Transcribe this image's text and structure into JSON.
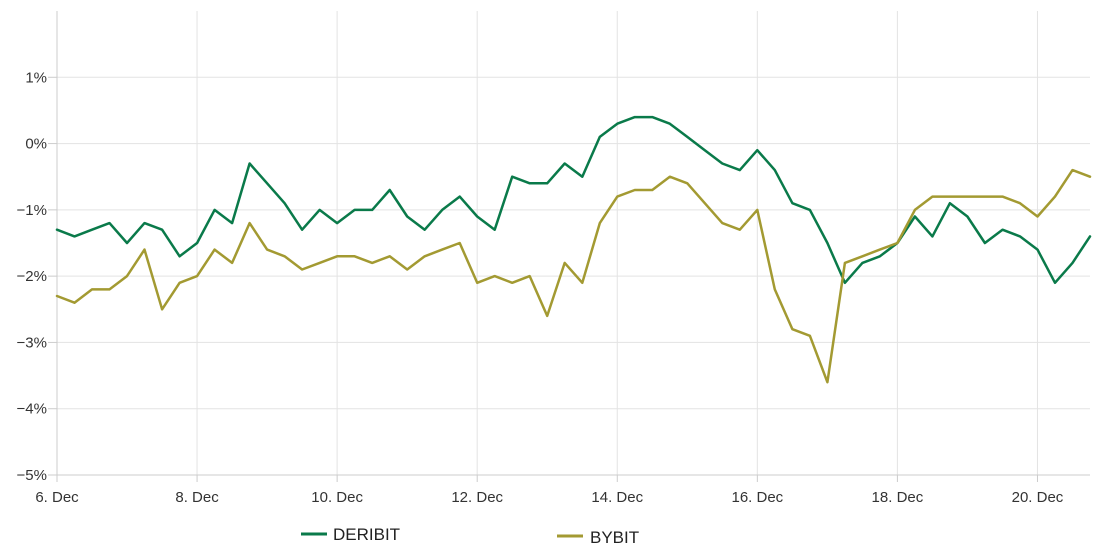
{
  "chart_data": {
    "type": "line",
    "title": "",
    "xlabel": "",
    "ylabel": "",
    "grid": true,
    "legend_position": "bottom",
    "x_ticks": [
      "6. Dec",
      "8. Dec",
      "10. Dec",
      "12. Dec",
      "14. Dec",
      "16. Dec",
      "18. Dec",
      "20. Dec"
    ],
    "y_ticks": [
      "1%",
      "0%",
      "−1%",
      "−2%",
      "−3%",
      "−4%",
      "−5%"
    ],
    "x_range_days": [
      6,
      20.75
    ],
    "ylim": [
      -5,
      2
    ],
    "x_day": [
      6.0,
      6.25,
      6.5,
      6.75,
      7.0,
      7.25,
      7.5,
      7.75,
      8.0,
      8.25,
      8.5,
      8.75,
      9.0,
      9.25,
      9.5,
      9.75,
      10.0,
      10.25,
      10.5,
      10.75,
      11.0,
      11.25,
      11.5,
      11.75,
      12.0,
      12.25,
      12.5,
      12.75,
      13.0,
      13.25,
      13.5,
      13.75,
      14.0,
      14.25,
      14.5,
      14.75,
      15.0,
      15.25,
      15.5,
      15.75,
      16.0,
      16.25,
      16.5,
      16.75,
      17.0,
      17.25,
      17.5,
      17.75,
      18.0,
      18.25,
      18.5,
      18.75,
      19.0,
      19.25,
      19.5,
      19.75,
      20.0,
      20.25,
      20.5,
      20.75
    ],
    "series": [
      {
        "name": "DERIBIT",
        "color": "#0a7a4a",
        "values": [
          -1.3,
          -1.4,
          -1.3,
          -1.2,
          -1.5,
          -1.2,
          -1.3,
          -1.7,
          -1.5,
          -1.0,
          -1.2,
          -0.3,
          -0.6,
          -0.9,
          -1.3,
          -1.0,
          -1.2,
          -1.0,
          -1.0,
          -0.7,
          -1.1,
          -1.3,
          -1.0,
          -0.8,
          -1.1,
          -1.3,
          -0.5,
          -0.6,
          -0.6,
          -0.3,
          -0.5,
          0.1,
          0.3,
          0.4,
          0.4,
          0.3,
          0.1,
          -0.1,
          -0.3,
          -0.4,
          -0.1,
          -0.4,
          -0.9,
          -1.0,
          -1.5,
          -2.1,
          -1.8,
          -1.7,
          -1.5,
          -1.1,
          -1.4,
          -0.9,
          -1.1,
          -1.5,
          -1.3,
          -1.4,
          -1.6,
          -2.1,
          -1.8,
          -1.4
        ]
      },
      {
        "name": "BYBIT",
        "color": "#a39a32",
        "values": [
          -2.3,
          -2.4,
          -2.2,
          -2.2,
          -2.0,
          -1.6,
          -2.5,
          -2.1,
          -2.0,
          -1.6,
          -1.8,
          -1.2,
          -1.6,
          -1.7,
          -1.9,
          -1.8,
          -1.7,
          -1.7,
          -1.8,
          -1.7,
          -1.9,
          -1.7,
          -1.6,
          -1.5,
          -2.1,
          -2.0,
          -2.1,
          -2.0,
          -2.6,
          -1.8,
          -2.1,
          -1.2,
          -0.8,
          -0.7,
          -0.7,
          -0.5,
          -0.6,
          -0.9,
          -1.2,
          -1.3,
          -1.0,
          -2.2,
          -2.8,
          -2.9,
          -3.6,
          -1.8,
          -1.7,
          -1.6,
          -1.5,
          -1.0,
          -0.8,
          -0.8,
          -0.8,
          -0.8,
          -0.8,
          -0.9,
          -1.1,
          -0.8,
          -0.4,
          -0.5
        ]
      }
    ]
  }
}
